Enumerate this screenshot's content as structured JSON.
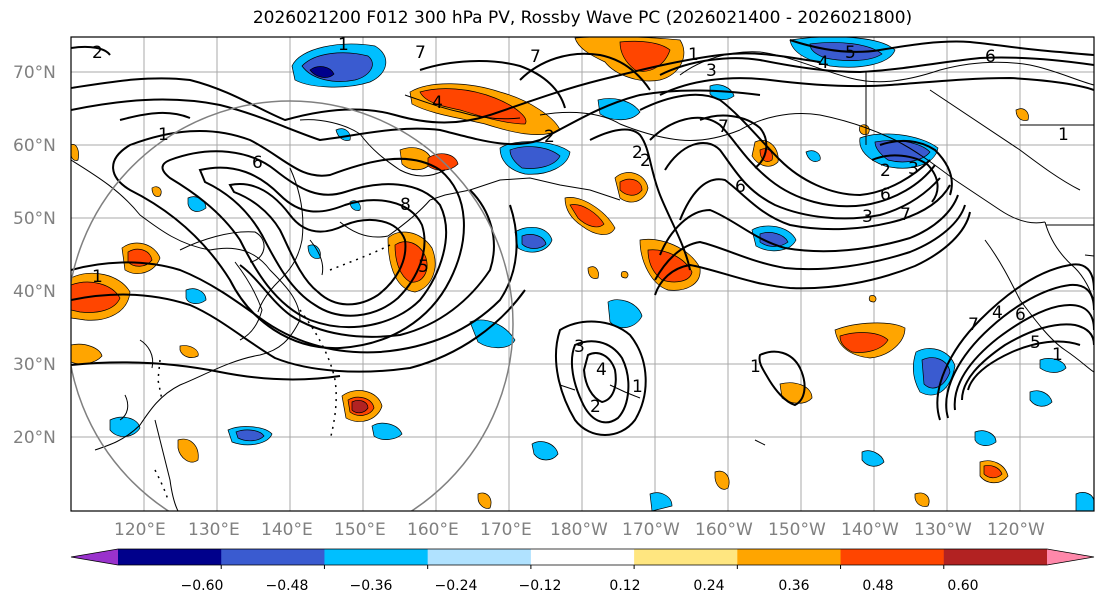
{
  "title": "2026021200 F012 300 hPa PV, Rossby Wave PC (2026021400 - 2026021800)",
  "map": {
    "lat_labels": [
      "70°N",
      "60°N",
      "50°N",
      "40°N",
      "30°N",
      "20°N"
    ],
    "lon_labels": [
      "120°E",
      "130°E",
      "140°E",
      "150°E",
      "160°E",
      "170°E",
      "180°W",
      "170°W",
      "160°W",
      "150°W",
      "140°W",
      "130°W",
      "120°W"
    ],
    "contour_labels": [
      "1",
      "2",
      "1",
      "7",
      "1",
      "6",
      "4",
      "3",
      "7",
      "4",
      "2",
      "5",
      "6",
      "2",
      "1",
      "2",
      "7",
      "6",
      "3",
      "2",
      "1",
      "6",
      "8",
      "5",
      "3",
      "4",
      "1",
      "2",
      "1",
      "3",
      "7",
      "6",
      "1",
      "4",
      "5",
      "7"
    ]
  },
  "colorbar": {
    "ticks": [
      "−0.60",
      "−0.48",
      "−0.36",
      "−0.24",
      "−0.12",
      "0.12",
      "0.24",
      "0.36",
      "0.48",
      "0.60"
    ],
    "colors": [
      "#9932cc",
      "#00008b",
      "#3a5bd0",
      "#00bfff",
      "#b0e2ff",
      "#ffffff",
      "#ffe680",
      "#ffa500",
      "#ff4500",
      "#b22222",
      "#ff88aa"
    ]
  }
}
